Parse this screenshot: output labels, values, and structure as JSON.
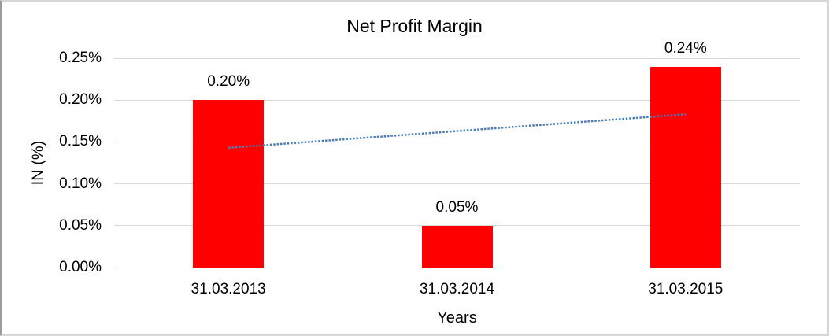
{
  "chart_data": {
    "type": "bar",
    "title": "Net Profit Margin",
    "xlabel": "Years",
    "ylabel": "IN (%)",
    "categories": [
      "31.03.2013",
      "31.03.2014",
      "31.03.2015"
    ],
    "values": [
      0.2,
      0.05,
      0.24
    ],
    "value_labels": [
      "0.20%",
      "0.05%",
      "0.24%"
    ],
    "ylim": [
      0,
      0.25
    ],
    "yticks": [
      {
        "value": 0.0,
        "label": "0.00%"
      },
      {
        "value": 0.05,
        "label": "0.05%"
      },
      {
        "value": 0.1,
        "label": "0.10%"
      },
      {
        "value": 0.15,
        "label": "0.15%"
      },
      {
        "value": 0.2,
        "label": "0.20%"
      },
      {
        "value": 0.25,
        "label": "0.25%"
      }
    ],
    "grid": true,
    "legend": "none",
    "bar_color": "#FF0000",
    "gridline_color": "#D9D9D9",
    "trendline": {
      "type": "linear",
      "style": "dotted",
      "color": "#4A7EBB",
      "start_value": 0.143,
      "end_value": 0.183
    }
  }
}
